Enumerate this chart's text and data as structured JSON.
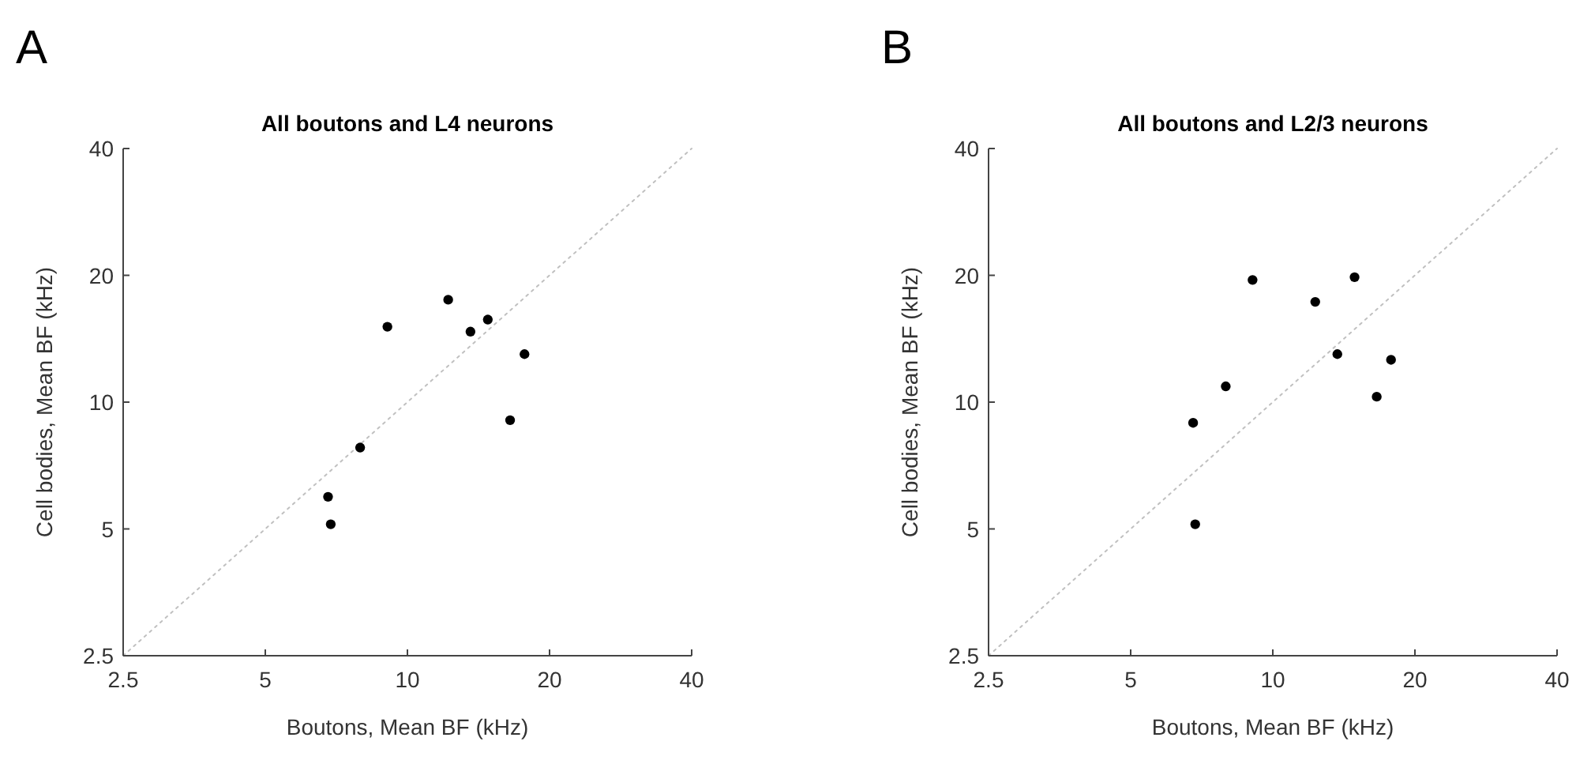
{
  "chart_data": [
    {
      "type": "scatter",
      "title": "All boutons and L4 neurons",
      "xlabel": "Boutons, Mean BF (kHz)",
      "ylabel": "Cell bodies, Mean BF (kHz)",
      "annotations": [
        "A"
      ],
      "log": "xy",
      "grid": false,
      "marker": "circle",
      "xlim": [
        2.5,
        40
      ],
      "ylim": [
        2.5,
        40
      ],
      "xticks": [
        2.5,
        5,
        10,
        20,
        40
      ],
      "yticks": [
        2.5,
        5,
        10,
        20,
        40
      ],
      "series": [
        {
          "type": "line",
          "color": "#c0c0c0",
          "line_style": "dotted",
          "marker": "none",
          "x": [
            2.5,
            40
          ],
          "values": [
            2.5,
            40
          ]
        },
        {
          "color": "#000000",
          "x": [
            9.07,
            12.2,
            13.6,
            14.8,
            17.7,
            16.5,
            7.94,
            6.79,
            6.88
          ],
          "values": [
            15.1,
            17.5,
            14.7,
            15.7,
            13.0,
            9.06,
            7.8,
            5.96,
            5.13
          ]
        }
      ]
    },
    {
      "type": "scatter",
      "title": "All boutons and L2/3 neurons",
      "xlabel": "Boutons, Mean BF (kHz)",
      "ylabel": "Cell bodies, Mean BF (kHz)",
      "annotations": [
        "B"
      ],
      "log": "xy",
      "grid": false,
      "marker": "circle",
      "xlim": [
        2.5,
        40
      ],
      "ylim": [
        2.5,
        40
      ],
      "xticks": [
        2.5,
        5,
        10,
        20,
        40
      ],
      "yticks": [
        2.5,
        5,
        10,
        20,
        40
      ],
      "series": [
        {
          "type": "line",
          "color": "#c0c0c0",
          "line_style": "dotted",
          "marker": "none",
          "x": [
            2.5,
            40
          ],
          "values": [
            2.5,
            40
          ]
        },
        {
          "color": "#000000",
          "x": [
            9.06,
            14.9,
            12.3,
            13.7,
            17.8,
            16.6,
            7.95,
            6.78,
            6.85
          ],
          "values": [
            19.5,
            19.8,
            17.3,
            13.0,
            12.6,
            10.3,
            10.9,
            8.93,
            5.13
          ]
        }
      ]
    }
  ]
}
